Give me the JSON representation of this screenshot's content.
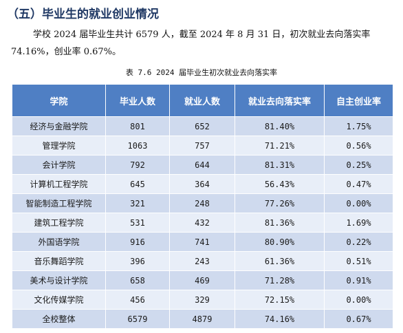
{
  "section_title": "（五）毕业生的就业创业情况",
  "paragraph": "学校 2024 届毕业生共计 6579 人，截至 2024 年 8 月 31 日，初次就业去向落实率 74.16%，创业率 0.67%。",
  "table_caption": "表 7.6 2024 届毕业生初次就业去向落实率",
  "table": {
    "headers": [
      "学院",
      "毕业人数",
      "就业人数",
      "就业去向落实率",
      "自主创业率"
    ],
    "rows": [
      [
        "经济与金融学院",
        "801",
        "652",
        "81.40%",
        "1.75%"
      ],
      [
        "管理学院",
        "1063",
        "757",
        "71.21%",
        "0.56%"
      ],
      [
        "会计学院",
        "792",
        "644",
        "81.31%",
        "0.25%"
      ],
      [
        "计算机工程学院",
        "645",
        "364",
        "56.43%",
        "0.47%"
      ],
      [
        "智能制造工程学院",
        "321",
        "248",
        "77.26%",
        "0.00%"
      ],
      [
        "建筑工程学院",
        "531",
        "432",
        "81.36%",
        "1.69%"
      ],
      [
        "外国语学院",
        "916",
        "741",
        "80.90%",
        "0.22%"
      ],
      [
        "音乐舞蹈学院",
        "396",
        "243",
        "61.36%",
        "0.51%"
      ],
      [
        "美术与设计学院",
        "658",
        "469",
        "71.28%",
        "0.91%"
      ],
      [
        "文化传媒学院",
        "456",
        "329",
        "72.15%",
        "0.00%"
      ],
      [
        "全校整体",
        "6579",
        "4879",
        "74.16%",
        "0.67%"
      ]
    ]
  },
  "colors": {
    "header_bg": "#4f7fc4",
    "row_odd_bg": "#cfdaee",
    "row_even_bg": "#e8eef8",
    "title_color": "#1f3864"
  }
}
